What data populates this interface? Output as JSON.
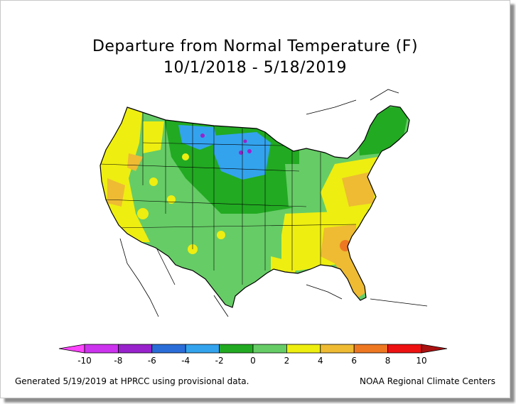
{
  "title": {
    "line1": "Departure from Normal Temperature (F)",
    "line2": "10/1/2018 - 5/18/2019"
  },
  "legend": {
    "ticks": [
      "-10",
      "-8",
      "-6",
      "-4",
      "-2",
      "0",
      "2",
      "4",
      "6",
      "8",
      "10"
    ],
    "bins": [
      {
        "range": "<-10",
        "color": "#ff44ff"
      },
      {
        "range": "-10 to -8",
        "color": "#cc33ee"
      },
      {
        "range": "-8 to -6",
        "color": "#9922cc"
      },
      {
        "range": "-6 to -4",
        "color": "#2a6dd9"
      },
      {
        "range": "-4 to -2",
        "color": "#33a3ee"
      },
      {
        "range": "-2 to 0",
        "color": "#22aa22"
      },
      {
        "range": "0 to 2",
        "color": "#66cc66"
      },
      {
        "range": "2 to 4",
        "color": "#eeee11"
      },
      {
        "range": "4 to 6",
        "color": "#eebb33"
      },
      {
        "range": "6 to 8",
        "color": "#ee7722"
      },
      {
        "range": "8 to 10",
        "color": "#ee1111"
      },
      {
        "range": ">10",
        "color": "#aa1111"
      }
    ],
    "colors_in_order": [
      "#ff44ff",
      "#cc33ee",
      "#9922cc",
      "#2a6dd9",
      "#33a3ee",
      "#22aa22",
      "#66cc66",
      "#eeee11",
      "#eebb33",
      "#ee7722",
      "#ee1111",
      "#aa1111"
    ]
  },
  "footer": {
    "left": "Generated 5/19/2019 at HPRCC using provisional data.",
    "right": "NOAA Regional Climate Centers"
  },
  "map_regions": {
    "west_coast": "#eeee11",
    "great_basin": "#66cc66",
    "northern_plains": "#33a3ee",
    "upper_midwest": "#22aa22",
    "central_plains": "#22aa22",
    "southern_plains": "#66cc66",
    "ohio_valley": "#66cc66",
    "southeast": "#eeee11",
    "florida_georgia": "#eebb33",
    "mid_atlantic": "#eebb33",
    "new_england": "#22aa22",
    "strong_cold_spots": "#9922cc"
  }
}
